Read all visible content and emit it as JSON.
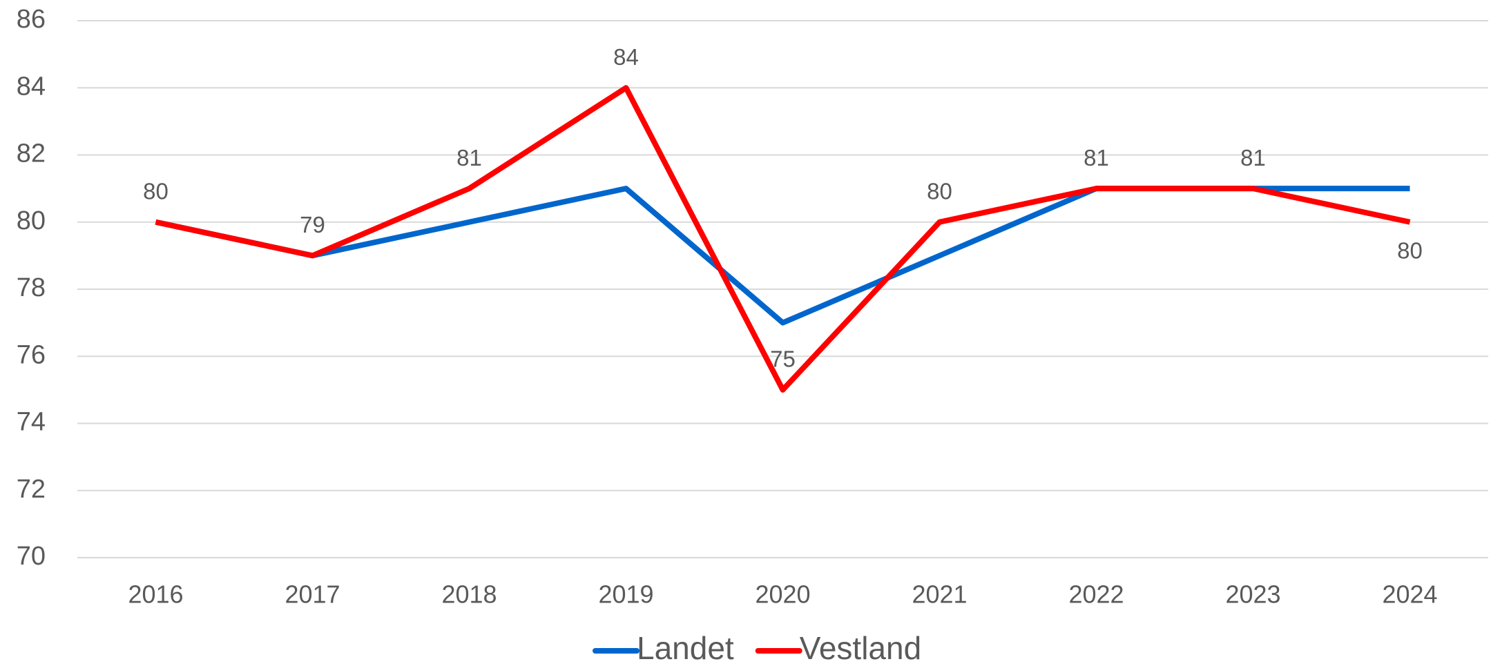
{
  "chart_data": {
    "type": "line",
    "categories": [
      "2016",
      "2017",
      "2018",
      "2019",
      "2020",
      "2021",
      "2022",
      "2023",
      "2024"
    ],
    "series": [
      {
        "name": "Landet",
        "color": "#0066cc",
        "values": [
          80,
          79,
          80,
          81,
          77,
          79,
          81,
          81,
          81
        ]
      },
      {
        "name": "Vestland",
        "color": "#ff0000",
        "values": [
          80,
          79,
          81,
          84,
          75,
          80,
          81,
          81,
          80
        ],
        "data_labels": true
      }
    ],
    "ylim": [
      70,
      86
    ],
    "yticks": [
      70,
      72,
      74,
      76,
      78,
      80,
      82,
      84,
      86
    ],
    "grid": true,
    "legend": "bottom"
  }
}
